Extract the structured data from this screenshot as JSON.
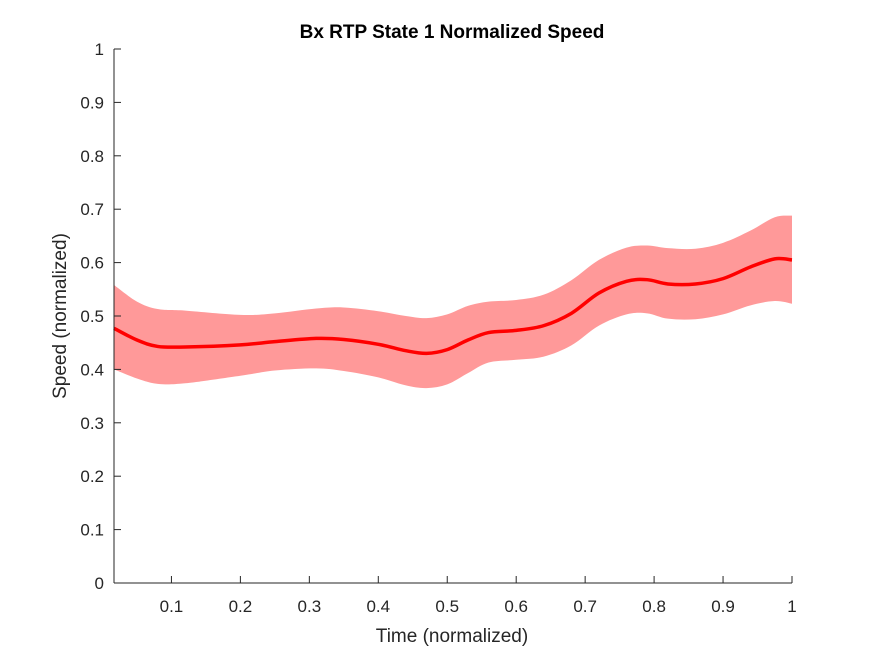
{
  "chart_data": {
    "type": "line",
    "title": "Bx  RTP State 1 Normalized Speed",
    "xlabel": "Time (normalized)",
    "ylabel": "Speed (normalized)",
    "xlim": [
      0.0167,
      1.0
    ],
    "ylim": [
      0,
      1
    ],
    "xticks": [
      0.1,
      0.2,
      0.3,
      0.4,
      0.5,
      0.6,
      0.7,
      0.8,
      0.9,
      1
    ],
    "xtick_labels": [
      "0.1",
      "0.2",
      "0.3",
      "0.4",
      "0.5",
      "0.6",
      "0.7",
      "0.8",
      "0.9",
      "1"
    ],
    "yticks": [
      0,
      0.1,
      0.2,
      0.3,
      0.4,
      0.5,
      0.6,
      0.7,
      0.8,
      0.9,
      1
    ],
    "ytick_labels": [
      "0",
      "0.1",
      "0.2",
      "0.3",
      "0.4",
      "0.5",
      "0.6",
      "0.7",
      "0.8",
      "0.9",
      "1"
    ],
    "grid": false,
    "series": [
      {
        "color": "#ff0000",
        "band_color": "#ff9999",
        "x": [
          0.0167,
          0.05,
          0.08,
          0.12,
          0.2,
          0.25,
          0.31,
          0.35,
          0.4,
          0.44,
          0.47,
          0.5,
          0.53,
          0.56,
          0.6,
          0.64,
          0.68,
          0.72,
          0.76,
          0.79,
          0.82,
          0.86,
          0.9,
          0.94,
          0.975,
          1.0
        ],
        "y": [
          0.477,
          0.455,
          0.443,
          0.442,
          0.446,
          0.452,
          0.458,
          0.456,
          0.447,
          0.435,
          0.43,
          0.437,
          0.455,
          0.469,
          0.473,
          0.482,
          0.505,
          0.543,
          0.565,
          0.568,
          0.56,
          0.56,
          0.57,
          0.592,
          0.607,
          0.605
        ],
        "upper": [
          0.558,
          0.527,
          0.513,
          0.51,
          0.502,
          0.505,
          0.514,
          0.516,
          0.509,
          0.5,
          0.496,
          0.503,
          0.519,
          0.527,
          0.53,
          0.54,
          0.567,
          0.605,
          0.628,
          0.632,
          0.627,
          0.626,
          0.637,
          0.66,
          0.685,
          0.688
        ],
        "lower": [
          0.4,
          0.383,
          0.373,
          0.374,
          0.388,
          0.398,
          0.402,
          0.397,
          0.385,
          0.37,
          0.365,
          0.372,
          0.393,
          0.413,
          0.418,
          0.424,
          0.445,
          0.482,
          0.503,
          0.505,
          0.495,
          0.494,
          0.503,
          0.52,
          0.528,
          0.523
        ]
      }
    ]
  }
}
